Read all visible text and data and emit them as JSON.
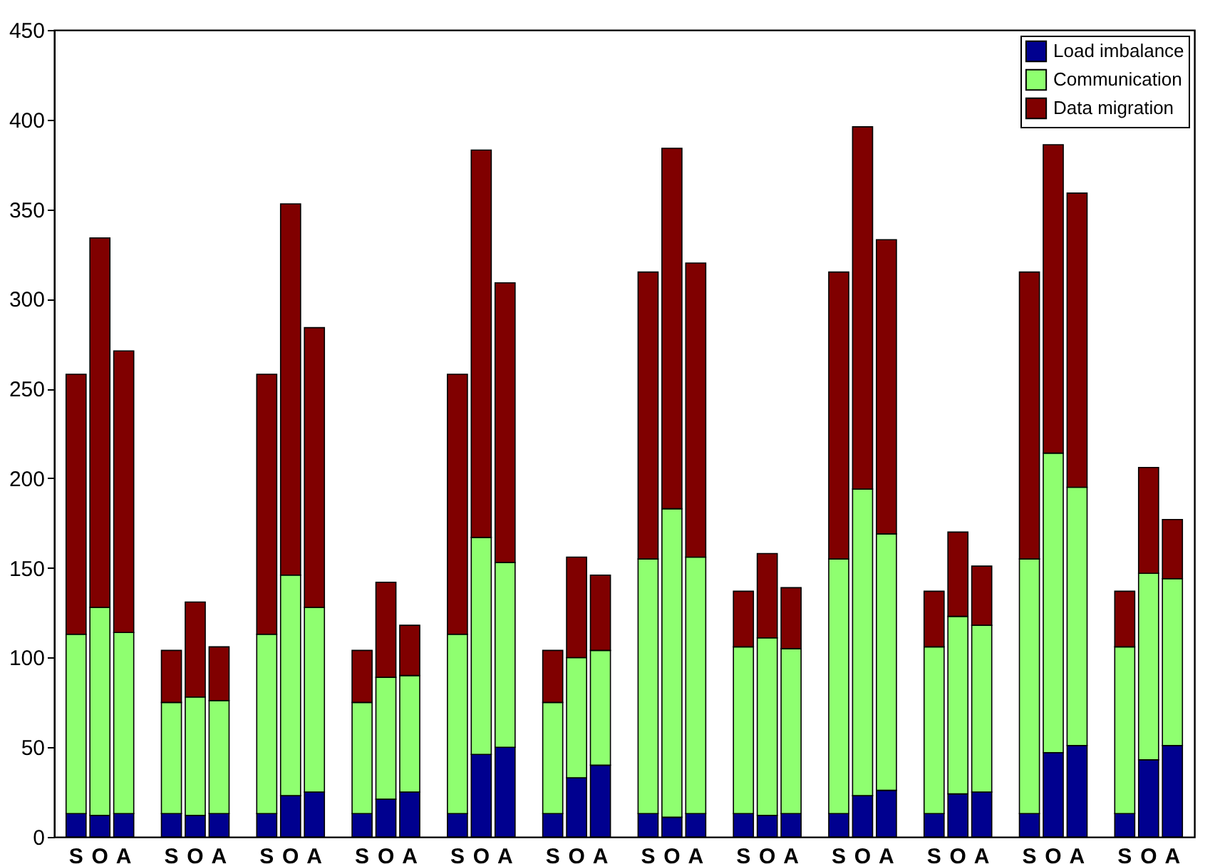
{
  "chart_data": {
    "type": "bar",
    "stacked": true,
    "categories": [
      "S",
      "O",
      "A",
      null,
      "S",
      "O",
      "A",
      null,
      "S",
      "O",
      "A",
      null,
      "S",
      "O",
      "A",
      null,
      "S",
      "O",
      "A",
      null,
      "S",
      "O",
      "A",
      null,
      "S",
      "O",
      "A",
      null,
      "S",
      "O",
      "A",
      null,
      "S",
      "O",
      "A",
      null,
      "S",
      "O",
      "A",
      null,
      "S",
      "O",
      "A",
      null,
      "S",
      "O",
      "A"
    ],
    "ylim": [
      0,
      450
    ],
    "yticks": [
      0,
      50,
      100,
      150,
      200,
      250,
      300,
      350,
      400,
      450
    ],
    "grid": false,
    "legend": "top right",
    "series": [
      {
        "name": "Load imbalance",
        "color": "#00008f",
        "values": [
          13,
          12,
          13,
          null,
          13,
          12,
          13,
          null,
          13,
          23,
          25,
          null,
          13,
          21,
          25,
          null,
          13,
          46,
          50,
          null,
          13,
          33,
          40,
          null,
          13,
          11,
          13,
          null,
          13,
          12,
          13,
          null,
          13,
          23,
          26,
          null,
          13,
          24,
          25,
          null,
          13,
          47,
          51,
          null,
          13,
          43,
          51
        ]
      },
      {
        "name": "Communication",
        "color": "#8fff70",
        "values": [
          100,
          116,
          101,
          null,
          62,
          66,
          63,
          null,
          100,
          123,
          103,
          null,
          62,
          68,
          65,
          null,
          100,
          121,
          103,
          null,
          62,
          67,
          64,
          null,
          142,
          172,
          143,
          null,
          93,
          99,
          92,
          null,
          142,
          171,
          143,
          null,
          93,
          99,
          93,
          null,
          142,
          167,
          144,
          null,
          93,
          104,
          93
        ]
      },
      {
        "name": "Data migration",
        "color": "#800000",
        "values": [
          145,
          206,
          157,
          null,
          29,
          53,
          30,
          null,
          145,
          207,
          156,
          null,
          29,
          53,
          28,
          null,
          145,
          216,
          156,
          null,
          29,
          56,
          42,
          null,
          160,
          201,
          164,
          null,
          31,
          47,
          34,
          null,
          160,
          202,
          164,
          null,
          31,
          47,
          33,
          null,
          160,
          172,
          164,
          null,
          31,
          59,
          33
        ]
      }
    ]
  }
}
